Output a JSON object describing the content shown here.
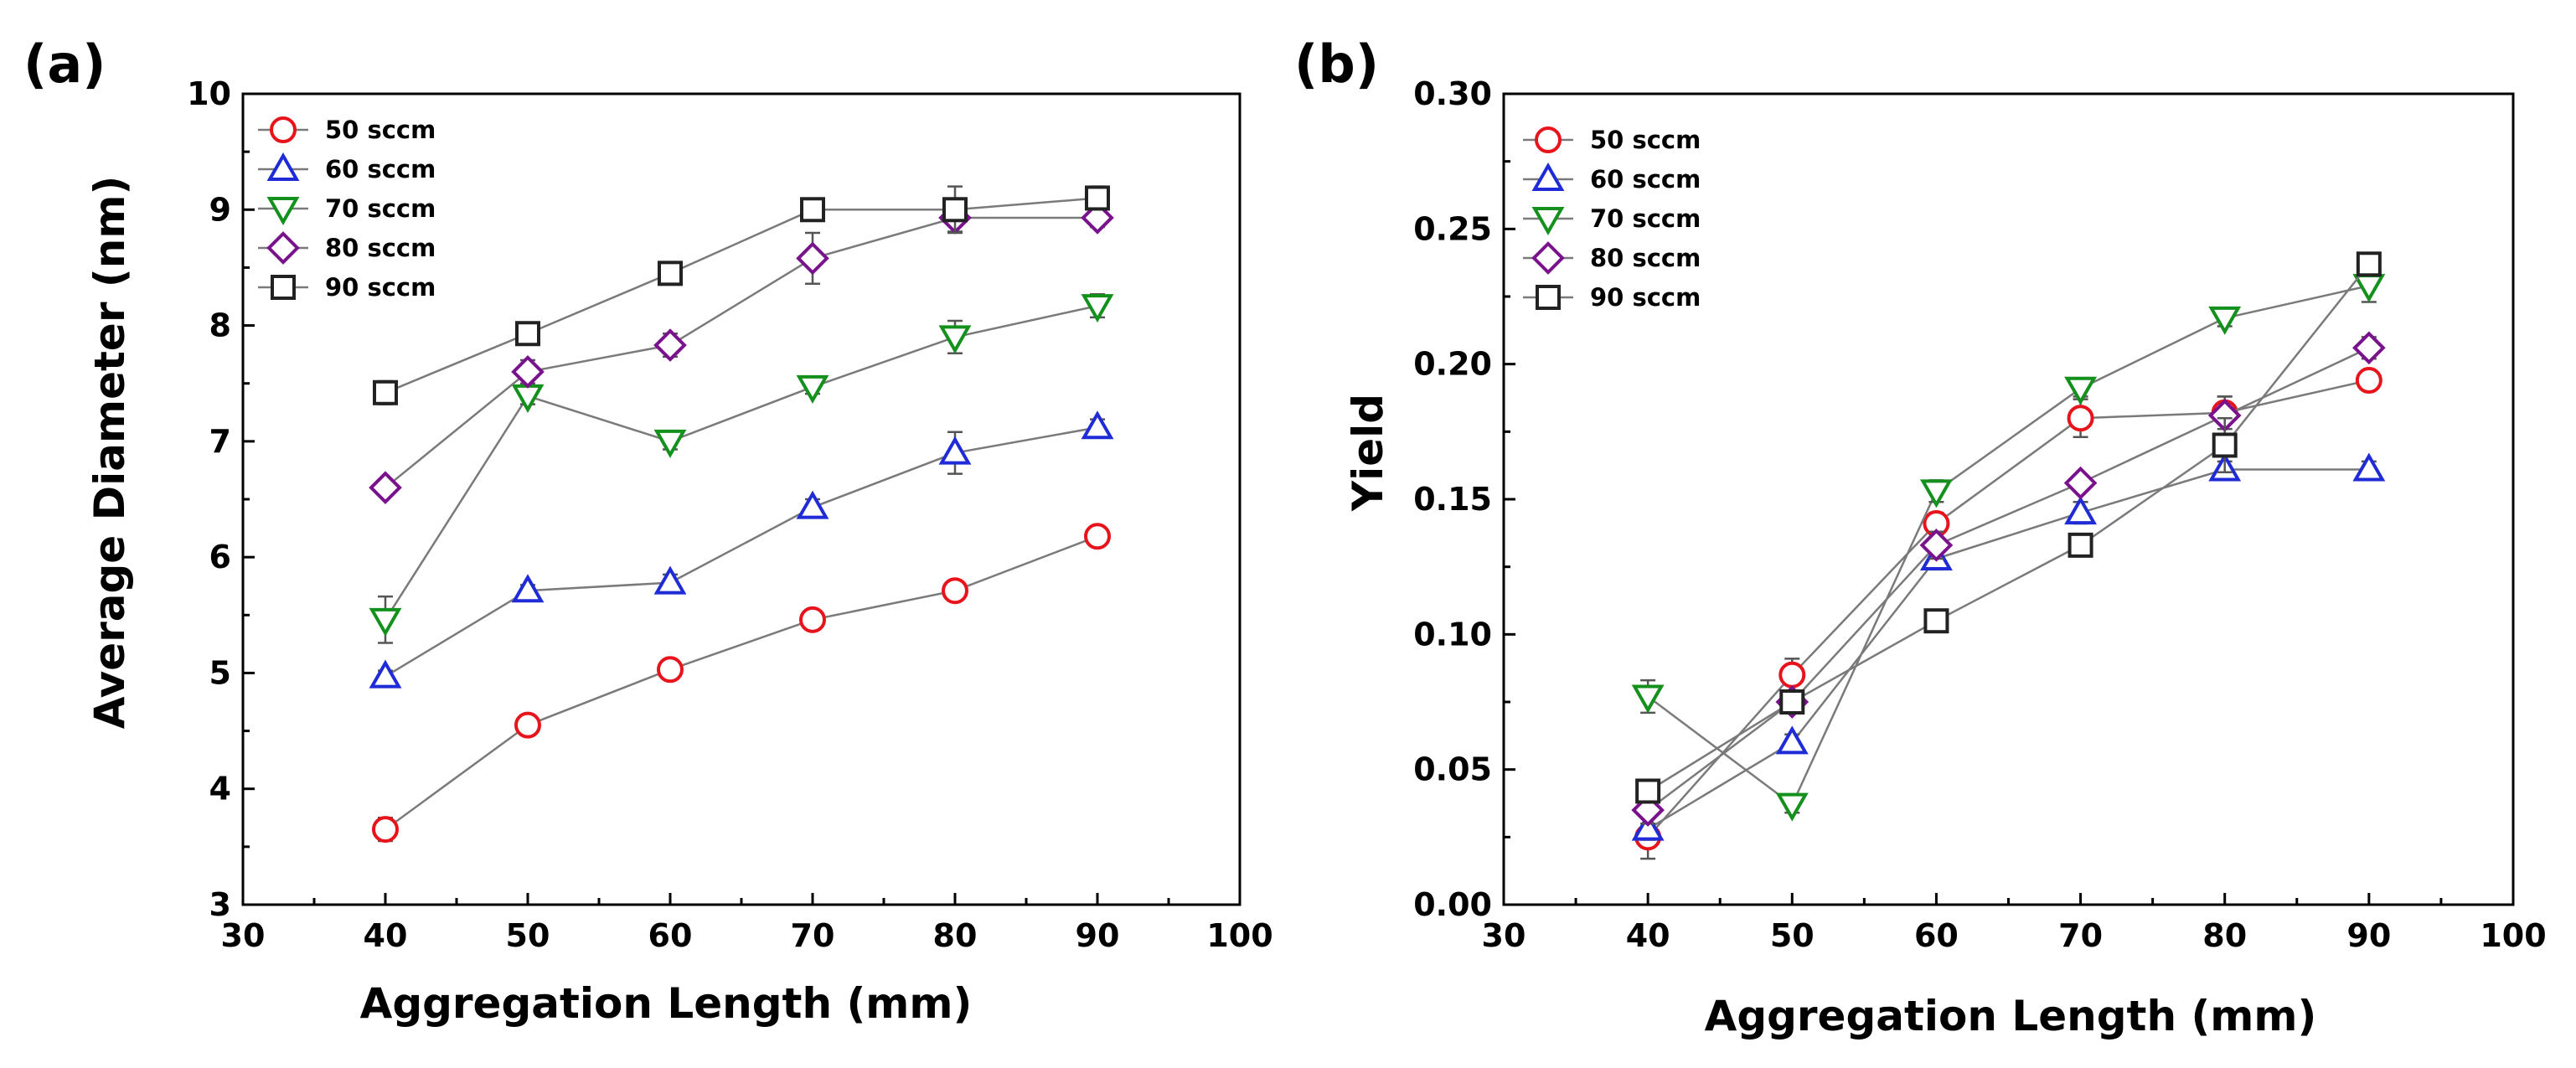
{
  "chart_data": [
    {
      "panel_label": "(a)",
      "type": "line",
      "xlabel": "Aggregation Length (mm)",
      "ylabel": "Average Diameter (nm)",
      "xlim": [
        30,
        100
      ],
      "ylim": [
        3,
        10
      ],
      "xticks": [
        "30",
        "40",
        "50",
        "60",
        "70",
        "80",
        "90",
        "100"
      ],
      "yticks": [
        "3",
        "4",
        "5",
        "6",
        "7",
        "8",
        "9",
        "10"
      ],
      "x": [
        40,
        50,
        60,
        70,
        80,
        90
      ],
      "legend_position": "top-left",
      "series": [
        {
          "name": "50 sccm",
          "marker": "circle",
          "color": "#e8141c",
          "values": [
            3.65,
            4.55,
            5.03,
            5.46,
            5.71,
            6.18
          ],
          "errors": [
            0.1,
            0.05,
            0.05,
            0.05,
            0.05,
            0.05
          ]
        },
        {
          "name": "60 sccm",
          "marker": "triangle-up",
          "color": "#1f2bd6",
          "values": [
            4.97,
            5.71,
            5.78,
            6.43,
            6.9,
            7.12
          ],
          "errors": [
            0.05,
            0.05,
            0.07,
            0.07,
            0.18,
            0.07
          ]
        },
        {
          "name": "70 sccm",
          "marker": "triangle-down",
          "color": "#14901c",
          "values": [
            5.46,
            7.39,
            7.0,
            7.47,
            7.9,
            8.17
          ],
          "errors": [
            0.2,
            0.07,
            0.07,
            0.06,
            0.14,
            0.1
          ]
        },
        {
          "name": "80 sccm",
          "marker": "diamond",
          "color": "#7a128e",
          "values": [
            6.6,
            7.6,
            7.83,
            8.58,
            8.93,
            8.93
          ],
          "errors": [
            0.05,
            0.1,
            0.1,
            0.22,
            0.12,
            0.08
          ]
        },
        {
          "name": "90 sccm",
          "marker": "square",
          "color": "#222222",
          "values": [
            7.42,
            7.93,
            8.45,
            9.0,
            9.0,
            9.1
          ],
          "errors": [
            0.1,
            0.07,
            0.07,
            0.05,
            0.2,
            0.1
          ]
        }
      ]
    },
    {
      "panel_label": "(b)",
      "type": "line",
      "xlabel": "Aggregation Length (mm)",
      "ylabel": "Yield",
      "xlim": [
        30,
        100
      ],
      "ylim": [
        0.0,
        0.3
      ],
      "xticks": [
        "30",
        "40",
        "50",
        "60",
        "70",
        "80",
        "90",
        "100"
      ],
      "yticks": [
        "0.00",
        "0.05",
        "0.10",
        "0.15",
        "0.20",
        "0.25",
        "0.30"
      ],
      "x": [
        40,
        50,
        60,
        70,
        80,
        90
      ],
      "legend_position": "top-left",
      "series": [
        {
          "name": "50 sccm",
          "marker": "circle",
          "color": "#e8141c",
          "values": [
            0.025,
            0.085,
            0.141,
            0.18,
            0.182,
            0.194
          ],
          "errors": [
            0.008,
            0.006,
            0.004,
            0.007,
            0.006,
            0.003
          ]
        },
        {
          "name": "60 sccm",
          "marker": "triangle-up",
          "color": "#1f2bd6",
          "values": [
            0.028,
            0.06,
            0.128,
            0.145,
            0.161,
            0.161
          ],
          "errors": [
            0.004,
            0.003,
            0.004,
            0.004,
            0.003,
            0.003
          ]
        },
        {
          "name": "70 sccm",
          "marker": "triangle-down",
          "color": "#14901c",
          "values": [
            0.077,
            0.037,
            0.153,
            0.191,
            0.217,
            0.229
          ],
          "errors": [
            0.006,
            0.003,
            0.004,
            0.003,
            0.003,
            0.006
          ]
        },
        {
          "name": "80 sccm",
          "marker": "diamond",
          "color": "#7a128e",
          "values": [
            0.035,
            0.075,
            0.133,
            0.156,
            0.181,
            0.206
          ],
          "errors": [
            0.005,
            0.003,
            0.005,
            0.003,
            0.007,
            0.004
          ]
        },
        {
          "name": "90 sccm",
          "marker": "square",
          "color": "#222222",
          "values": [
            0.042,
            0.075,
            0.105,
            0.133,
            0.17,
            0.237
          ],
          "errors": [
            0.004,
            0.003,
            0.003,
            0.004,
            0.01,
            0.004
          ]
        }
      ]
    }
  ]
}
